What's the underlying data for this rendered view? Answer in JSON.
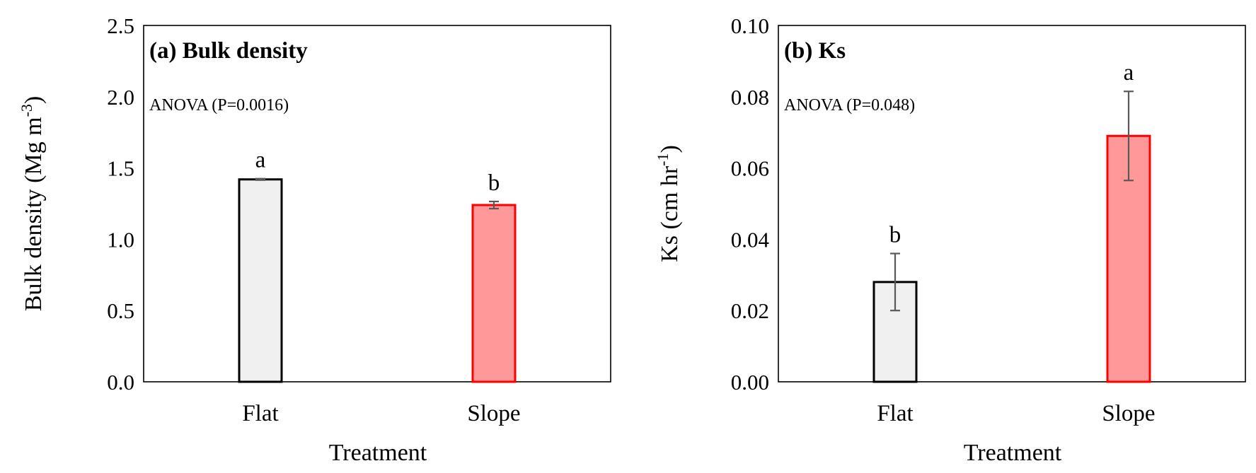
{
  "chart_data": [
    {
      "type": "bar",
      "title": "(a) Bulk density",
      "annotation": "ANOVA (P=0.0016)",
      "xlabel": "Treatment",
      "ylabel_main": "Bulk density (Mg m",
      "ylabel_sup": "-3",
      "ylabel_close": ")",
      "categories": [
        "Flat",
        "Slope"
      ],
      "values": [
        1.42,
        1.24
      ],
      "errors": [
        0.005,
        0.025
      ],
      "significance": [
        "a",
        "b"
      ],
      "ylim": [
        0,
        2.5
      ],
      "yticks": [
        "0.0",
        "0.5",
        "1.0",
        "1.5",
        "2.0",
        "2.5"
      ],
      "colors": {
        "fill": [
          "#f0f0f0",
          "#ff9999"
        ],
        "edge": [
          "#000000",
          "#ff0000"
        ]
      }
    },
    {
      "type": "bar",
      "title": "(b) Ks",
      "annotation": "ANOVA (P=0.048)",
      "xlabel": "Treatment",
      "ylabel_main": "Ks (cm hr",
      "ylabel_sup": "-1",
      "ylabel_close": ")",
      "categories": [
        "Flat",
        "Slope"
      ],
      "values": [
        0.028,
        0.069
      ],
      "errors": [
        0.008,
        0.0125
      ],
      "significance": [
        "b",
        "a"
      ],
      "ylim": [
        0,
        0.1
      ],
      "yticks": [
        "0.00",
        "0.02",
        "0.04",
        "0.06",
        "0.08",
        "0.10"
      ],
      "colors": {
        "fill": [
          "#f0f0f0",
          "#ff9999"
        ],
        "edge": [
          "#000000",
          "#ff0000"
        ]
      }
    }
  ]
}
